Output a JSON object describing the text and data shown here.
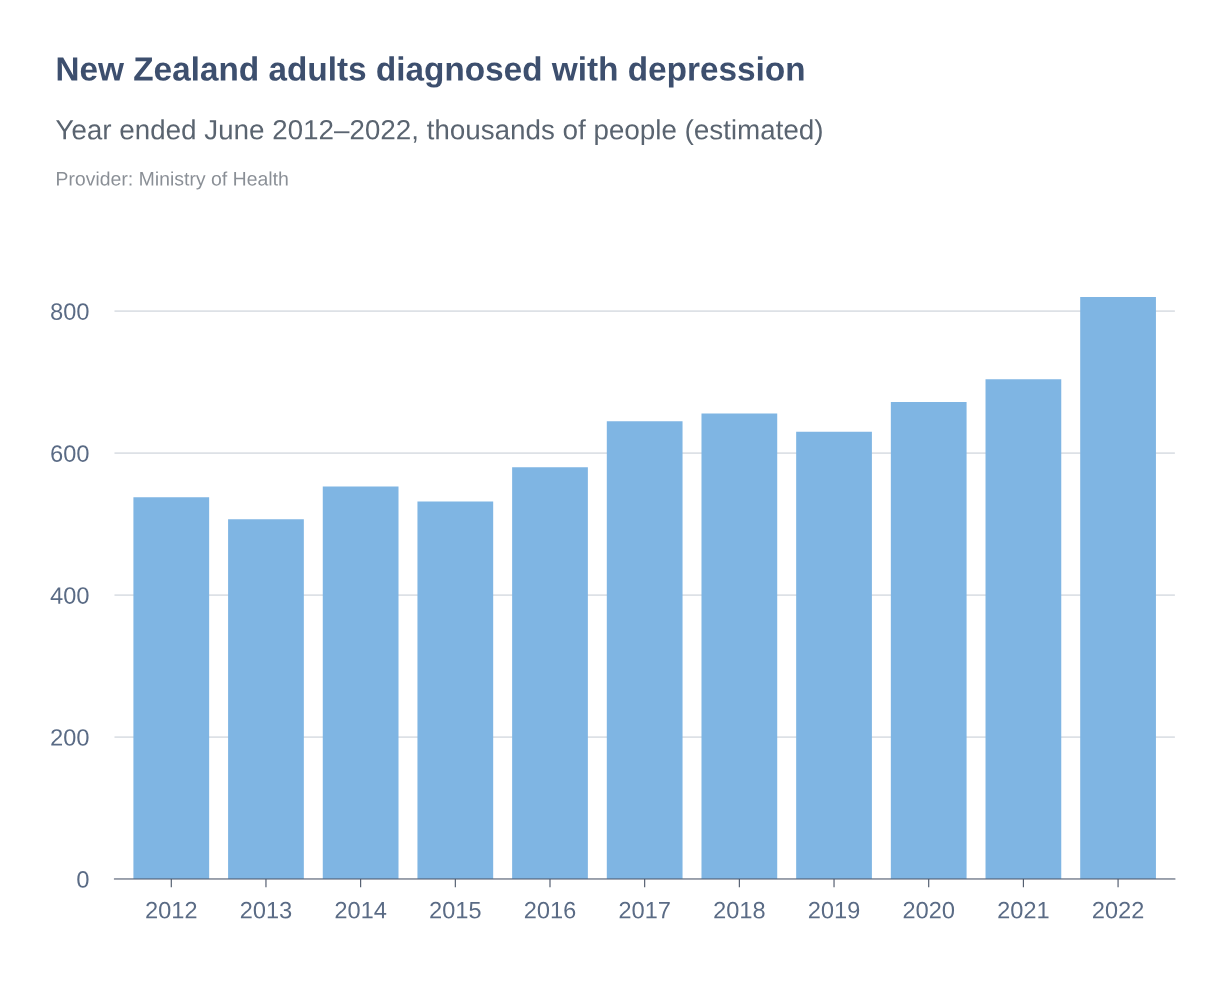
{
  "chart_data": {
    "type": "bar",
    "title": "New Zealand adults diagnosed with depression",
    "subtitle": "Year ended June 2012–2022, thousands of people (estimated)",
    "annotations": [
      "Provider: Ministry of Health"
    ],
    "categories": [
      "2012",
      "2013",
      "2014",
      "2015",
      "2016",
      "2017",
      "2018",
      "2019",
      "2020",
      "2021",
      "2022"
    ],
    "values": [
      538,
      507,
      553,
      532,
      580,
      645,
      656,
      630,
      672,
      704,
      820
    ],
    "color": "#7fb5e3",
    "ylim": [
      0,
      820
    ],
    "yticks": [
      0,
      200,
      400,
      600,
      800
    ],
    "grid": "y"
  }
}
